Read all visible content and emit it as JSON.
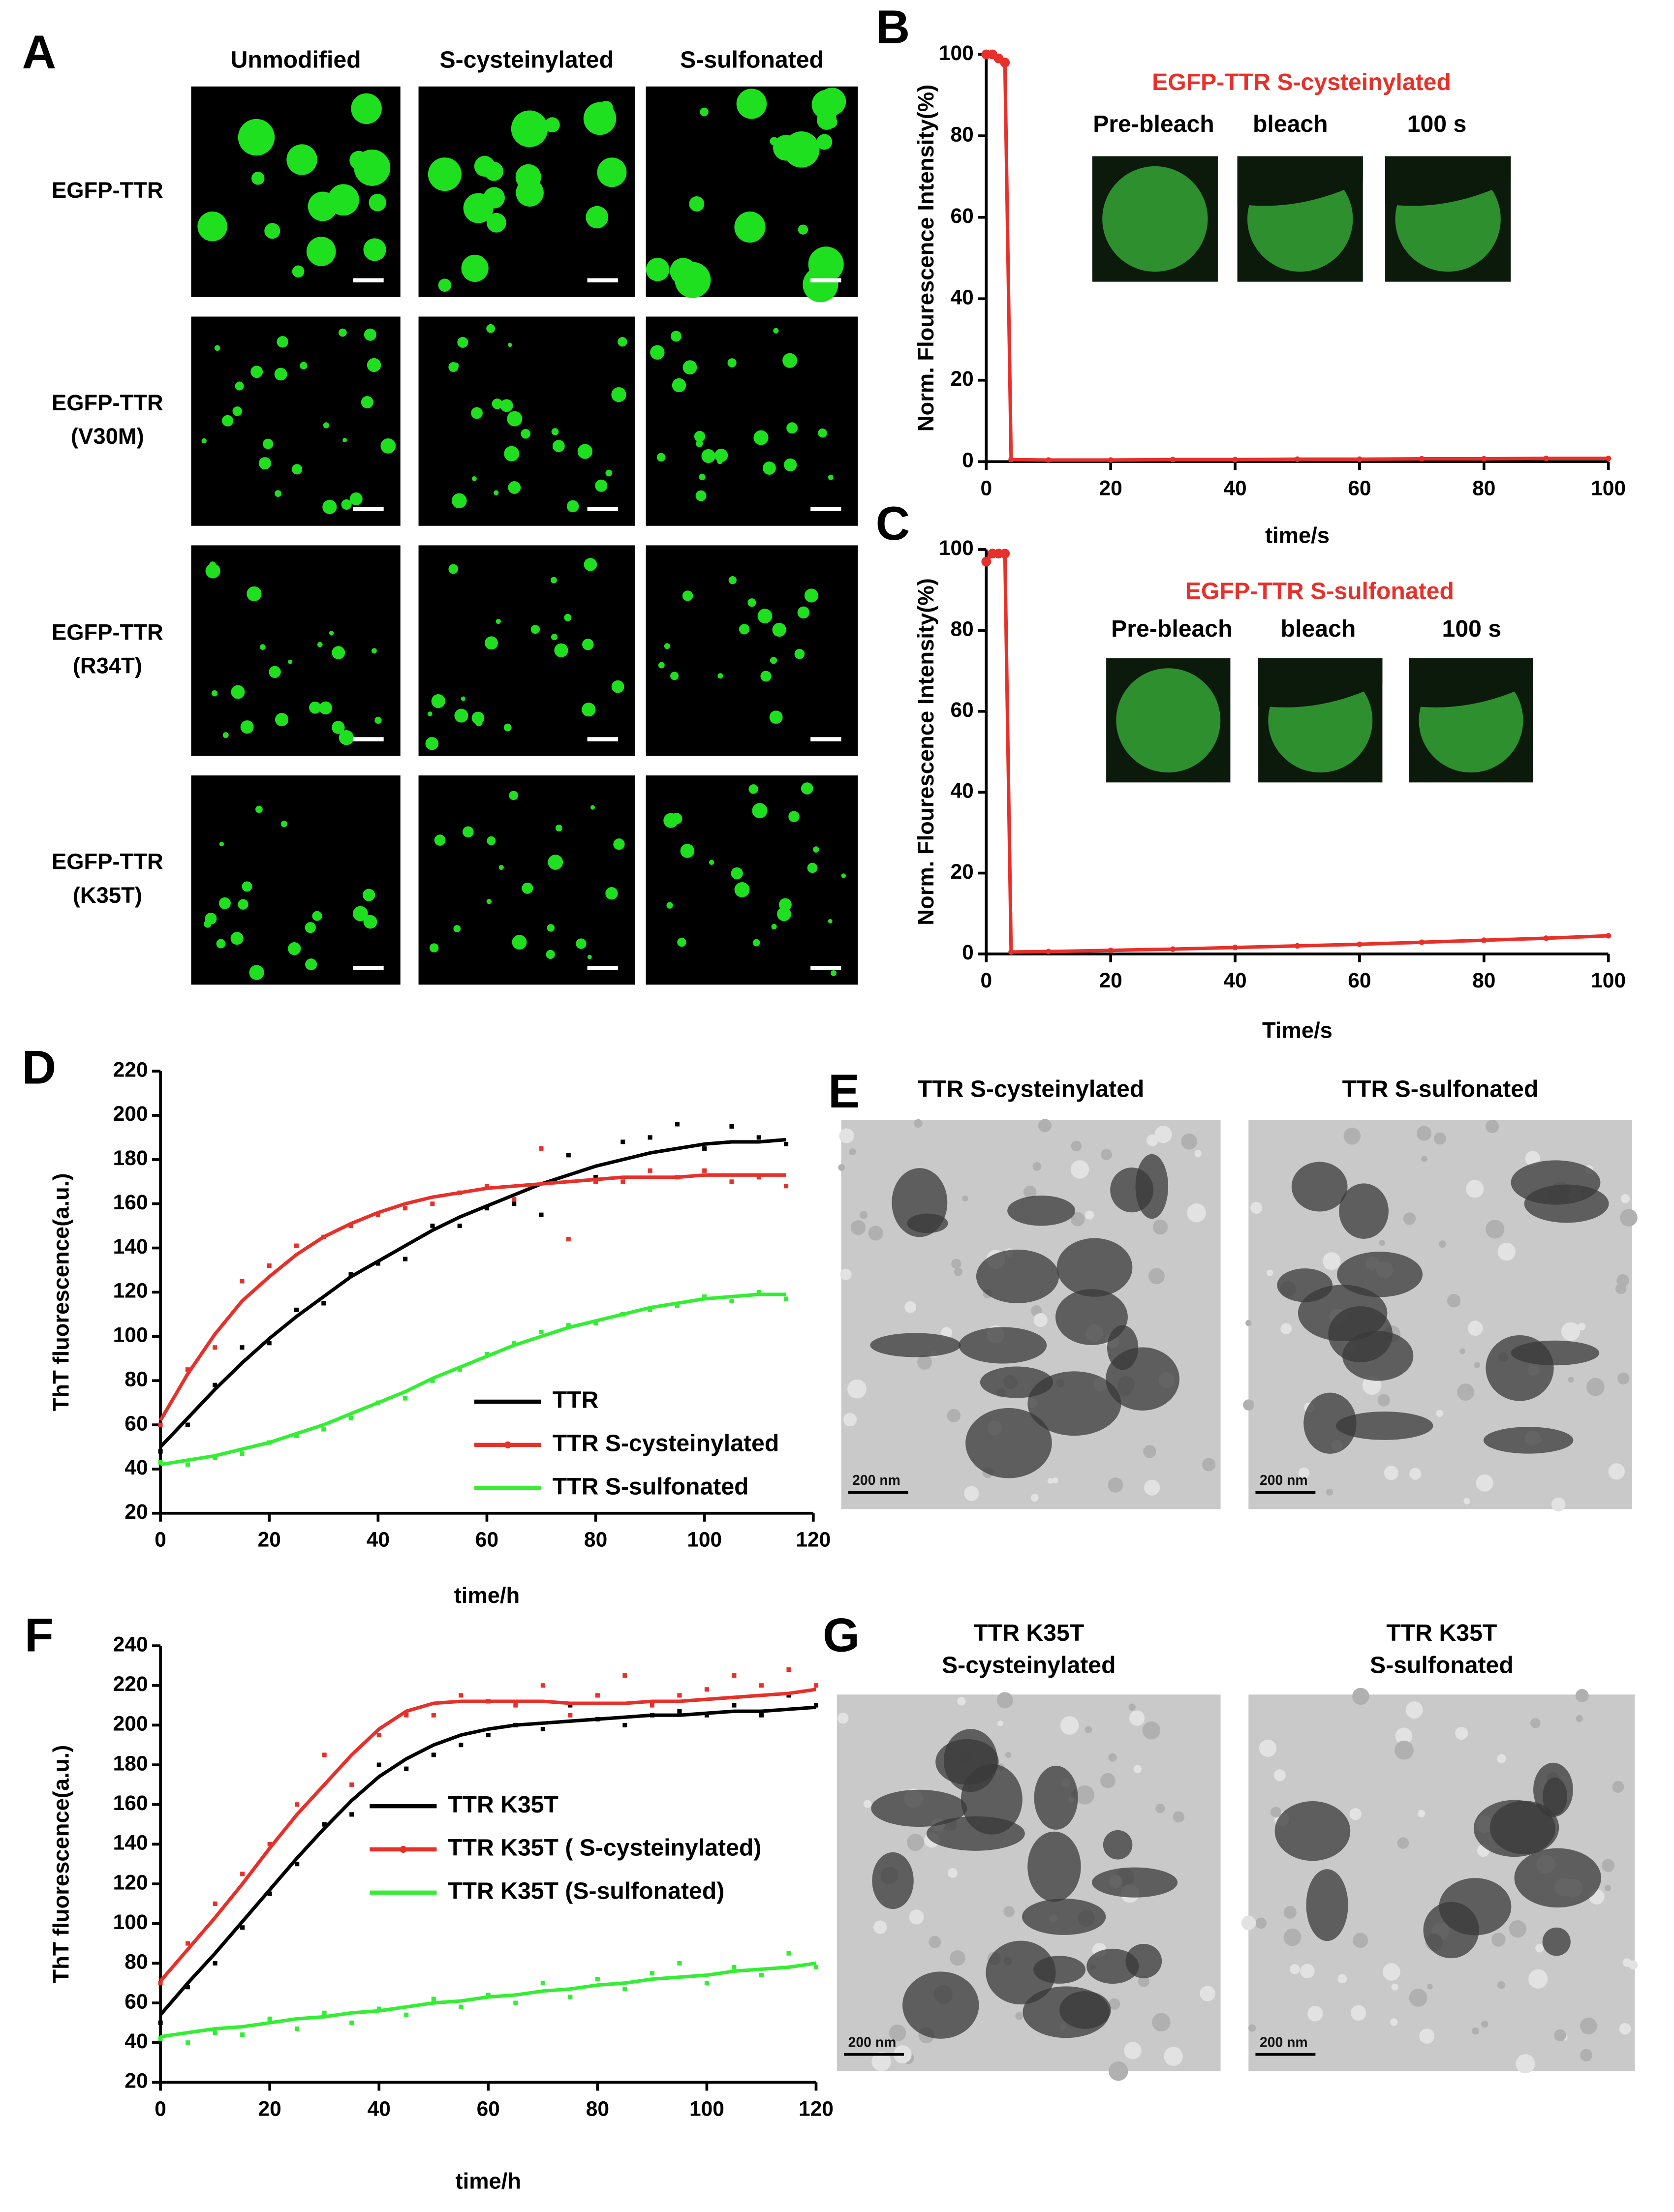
{
  "panel_labels": [
    "A",
    "B",
    "C",
    "D",
    "E",
    "F",
    "G"
  ],
  "panel_a": {
    "columns": [
      "Unmodified",
      "S-cysteinylated",
      "S-sulfonated"
    ],
    "rows": [
      [
        "EGFP-TTR"
      ],
      [
        "EGFP-TTR",
        "(V30M)"
      ],
      [
        "EGFP-TTR",
        "(R34T)"
      ],
      [
        "EGFP-TTR",
        "(K35T)"
      ]
    ]
  },
  "panel_e": {
    "captions": [
      [
        "TTR S-cysteinylated"
      ],
      [
        "TTR S-sulfonated"
      ]
    ],
    "scale_bar": "200 nm"
  },
  "panel_g": {
    "captions": [
      [
        "TTR K35T",
        "S-cysteinylated"
      ],
      [
        "TTR K35T",
        "S-sulfonated"
      ]
    ],
    "scale_bar": "200 nm"
  },
  "chart_data": [
    {
      "type": "line",
      "inset_title": "EGFP-TTR S-cysteinylated",
      "inset_labels": [
        "Pre-bleach",
        "bleach",
        "100 s"
      ],
      "xlabel": "time/s",
      "ylabel": "Norm. Flourescence Intensity(%)",
      "color": "#e8302a",
      "x": [
        0,
        1,
        2,
        3,
        4,
        10,
        20,
        30,
        40,
        50,
        60,
        70,
        80,
        90,
        100
      ],
      "values": [
        100,
        100,
        99,
        98,
        0.5,
        0.4,
        0.4,
        0.5,
        0.5,
        0.6,
        0.6,
        0.7,
        0.7,
        0.8,
        0.8
      ],
      "xlim": [
        0,
        100
      ],
      "ylim": [
        0,
        100
      ],
      "xticks": [
        0,
        20,
        40,
        60,
        80,
        100
      ],
      "yticks": [
        0,
        20,
        40,
        60,
        80,
        100
      ]
    },
    {
      "type": "line",
      "inset_title": "EGFP-TTR S-sulfonated",
      "inset_labels": [
        "Pre-bleach",
        "bleach",
        "100 s"
      ],
      "xlabel": "Time/s",
      "ylabel": "Norm. Flourescence Intensity(%)",
      "color": "#e8302a",
      "x": [
        0,
        1,
        2,
        3,
        4,
        10,
        20,
        30,
        40,
        50,
        60,
        70,
        80,
        90,
        100
      ],
      "values": [
        97,
        99,
        99,
        99,
        0.5,
        0.6,
        0.9,
        1.2,
        1.6,
        2,
        2.4,
        2.9,
        3.4,
        3.9,
        4.5
      ],
      "xlim": [
        0,
        100
      ],
      "ylim": [
        0,
        100
      ],
      "xticks": [
        0,
        20,
        40,
        60,
        80,
        100
      ],
      "yticks": [
        0,
        20,
        40,
        60,
        80,
        100
      ]
    },
    {
      "type": "line",
      "xlabel": "time/h",
      "ylabel": "ThT fluorescence(a.u.)",
      "x": [
        0,
        5,
        10,
        15,
        20,
        25,
        30,
        35,
        40,
        45,
        50,
        55,
        60,
        65,
        70,
        75,
        80,
        85,
        90,
        95,
        100,
        105,
        110,
        115
      ],
      "series": [
        {
          "name": "TTR",
          "color": "#000000",
          "values": [
            50,
            63,
            76,
            88,
            99,
            109,
            118,
            127,
            134,
            141,
            148,
            154,
            159,
            164,
            169,
            173,
            177,
            180,
            183,
            185,
            187,
            188,
            188,
            189
          ],
          "points": [
            48,
            60,
            78,
            95,
            97,
            112,
            115,
            128,
            133,
            135,
            150,
            150,
            158,
            160,
            155,
            182,
            172,
            188,
            190,
            196,
            185,
            195,
            190,
            187
          ]
        },
        {
          "name": "TTR S-cysteinylated",
          "color": "#e8302a",
          "values": [
            62,
            83,
            101,
            116,
            127,
            137,
            145,
            151,
            156,
            160,
            163,
            165,
            167,
            168,
            169,
            170,
            171,
            172,
            172,
            172,
            173,
            173,
            173,
            173
          ],
          "points": [
            60,
            85,
            95,
            125,
            132,
            141,
            145,
            150,
            155,
            158,
            160,
            165,
            168,
            162,
            185,
            144,
            170,
            170,
            175,
            172,
            175,
            170,
            172,
            168
          ]
        },
        {
          "name": "TTR S-sulfonated",
          "color": "#33ee33",
          "values": [
            42,
            44,
            46,
            49,
            52,
            56,
            60,
            65,
            70,
            75,
            81,
            86,
            91,
            96,
            100,
            104,
            107,
            110,
            113,
            115,
            117,
            118,
            119,
            119
          ],
          "points": [
            43,
            42,
            45,
            47,
            52,
            55,
            58,
            63,
            70,
            72,
            80,
            85,
            92,
            97,
            102,
            105,
            106,
            110,
            112,
            114,
            118,
            116,
            120,
            117
          ]
        }
      ],
      "xlim": [
        0,
        120
      ],
      "ylim": [
        20,
        220
      ],
      "xticks": [
        0,
        20,
        40,
        60,
        80,
        100,
        120
      ],
      "yticks": [
        20,
        40,
        60,
        80,
        100,
        120,
        140,
        160,
        180,
        200,
        220
      ]
    },
    {
      "type": "line",
      "xlabel": "time/h",
      "ylabel": "ThT fluorescence(a.u.)",
      "x": [
        0,
        5,
        10,
        15,
        20,
        25,
        30,
        35,
        40,
        45,
        50,
        55,
        60,
        65,
        70,
        75,
        80,
        85,
        90,
        95,
        100,
        105,
        110,
        115,
        120
      ],
      "series": [
        {
          "name": "TTR K35T",
          "color": "#000000",
          "values": [
            54,
            70,
            85,
            101,
            117,
            133,
            148,
            162,
            174,
            183,
            190,
            195,
            198,
            200,
            201,
            202,
            203,
            204,
            205,
            205,
            206,
            207,
            207,
            208,
            209
          ],
          "points": [
            50,
            68,
            80,
            98,
            115,
            130,
            150,
            155,
            180,
            178,
            185,
            190,
            195,
            200,
            198,
            210,
            203,
            200,
            205,
            207,
            205,
            210,
            205,
            215,
            210
          ]
        },
        {
          "name": "TTR K35T ( S-cysteinylated)",
          "color": "#e8302a",
          "values": [
            71,
            87,
            103,
            120,
            138,
            155,
            170,
            185,
            198,
            207,
            211,
            212,
            212,
            212,
            212,
            211,
            211,
            211,
            212,
            212,
            213,
            214,
            215,
            216,
            218
          ],
          "points": [
            70,
            90,
            110,
            125,
            140,
            160,
            185,
            170,
            195,
            205,
            205,
            215,
            212,
            210,
            220,
            205,
            215,
            225,
            210,
            215,
            218,
            225,
            220,
            228,
            220
          ]
        },
        {
          "name": "TTR K35T (S-sulfonated)",
          "color": "#33ee33",
          "values": [
            43,
            45,
            47,
            48,
            50,
            52,
            53,
            55,
            56,
            58,
            60,
            61,
            63,
            64,
            66,
            67,
            69,
            70,
            72,
            73,
            74,
            76,
            77,
            78,
            80
          ],
          "points": [
            42,
            40,
            45,
            44,
            52,
            47,
            55,
            50,
            57,
            54,
            62,
            58,
            64,
            60,
            70,
            63,
            72,
            67,
            75,
            80,
            70,
            78,
            74,
            85,
            78
          ]
        }
      ],
      "xlim": [
        0,
        120
      ],
      "ylim": [
        20,
        240
      ],
      "xticks": [
        0,
        20,
        40,
        60,
        80,
        100,
        120
      ],
      "yticks": [
        20,
        40,
        60,
        80,
        100,
        120,
        140,
        160,
        180,
        200,
        220,
        240
      ]
    }
  ]
}
